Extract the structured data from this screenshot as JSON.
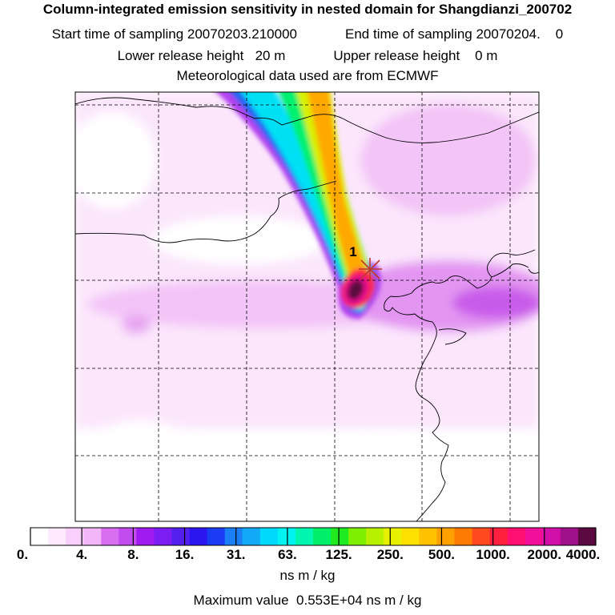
{
  "header": {
    "title": "Column-integrated emission sensitivity in nested domain for Shangdianzi_200702",
    "start_label": "Start time of sampling 20070203.210000",
    "end_label": "End time of sampling 20070204.",
    "end_value": "0",
    "lower_label": "Lower release height",
    "lower_value": "20 m",
    "upper_label": "Upper release height",
    "upper_value": "0 m",
    "met_label": "Meteorological data used are from ECMWF"
  },
  "map": {
    "receptor_label": "1",
    "receptor_color": "#c0392b"
  },
  "colorbar": {
    "colors": [
      "#ffffff",
      "#fde8fd",
      "#f9d0fb",
      "#f3b6f8",
      "#d86ef2",
      "#c24bef",
      "#a01bf0",
      "#7c1ef3",
      "#5420f0",
      "#2c16ef",
      "#1a3cf2",
      "#1a7ef5",
      "#12aaf6",
      "#00d9fb",
      "#00f3f0",
      "#00f5b0",
      "#00f06a",
      "#20ea20",
      "#7fee00",
      "#b8f000",
      "#e6f000",
      "#ffe000",
      "#ffc000",
      "#ffa000",
      "#ff7a00",
      "#ff4a20",
      "#ff2040",
      "#ff1070",
      "#f0109a",
      "#d010a8",
      "#a0108a",
      "#5a0a40"
    ],
    "labels": [
      "0.",
      "4.",
      "8.",
      "16.",
      "31.",
      "63.",
      "125.",
      "250.",
      "500.",
      "1000.",
      "2000.",
      "4000."
    ],
    "unit": "ns m / kg"
  },
  "footer": {
    "max_label": "Maximum value",
    "max_value": "0.553E+04",
    "max_unit": "ns m / kg"
  }
}
